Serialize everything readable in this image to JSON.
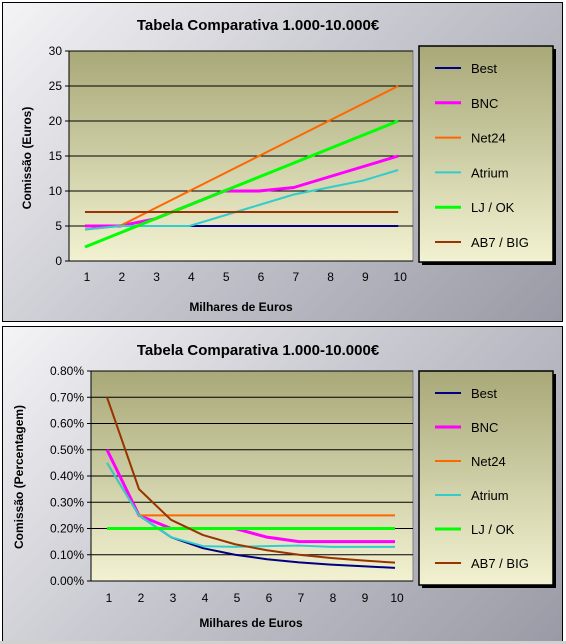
{
  "chart_data": [
    {
      "type": "line",
      "title": "Tabela Comparativa 1.000-10.000€",
      "xlabel": "Milhares de Euros",
      "ylabel": "Comissão (Euros)",
      "x": [
        1,
        2,
        3,
        4,
        5,
        6,
        7,
        8,
        9,
        10
      ],
      "ylim": [
        0,
        30
      ],
      "yticks": [
        "0",
        "5",
        "10",
        "15",
        "20",
        "25",
        "30"
      ],
      "ytick_values": [
        0,
        5,
        10,
        15,
        20,
        25,
        30
      ],
      "grid": true,
      "legend_position": "right",
      "series": [
        {
          "name": "Best",
          "color": "#000080",
          "values": [
            5,
            5,
            5,
            5,
            5,
            5,
            5,
            5,
            5,
            5
          ]
        },
        {
          "name": "BNC",
          "color": "#ff00ff",
          "values": [
            5,
            5,
            6,
            8,
            10,
            10,
            10.5,
            12,
            13.5,
            15
          ]
        },
        {
          "name": "Net24",
          "color": "#ff6600",
          "values": [
            4.5,
            5,
            7.5,
            10,
            12.5,
            15,
            17.5,
            20,
            22.5,
            25
          ]
        },
        {
          "name": "Atrium",
          "color": "#33cccc",
          "values": [
            4.5,
            5,
            5,
            5,
            6.5,
            8,
            9.5,
            10.5,
            11.5,
            13
          ]
        },
        {
          "name": "LJ / OK",
          "color": "#00ff00",
          "values": [
            2,
            4,
            6,
            8,
            10,
            12,
            14,
            16,
            18,
            20
          ]
        },
        {
          "name": "AB7 / BIG",
          "color": "#993300",
          "values": [
            7,
            7,
            7,
            7,
            7,
            7,
            7,
            7,
            7,
            7
          ]
        }
      ]
    },
    {
      "type": "line",
      "title": "Tabela Comparativa 1.000-10.000€",
      "xlabel": "Milhares de Euros",
      "ylabel": "Comissão (Percentagem)",
      "x": [
        1,
        2,
        3,
        4,
        5,
        6,
        7,
        8,
        9,
        10
      ],
      "ylim": [
        0,
        0.8
      ],
      "yticks": [
        "0.00%",
        "0.10%",
        "0.20%",
        "0.30%",
        "0.40%",
        "0.50%",
        "0.60%",
        "0.70%",
        "0.80%"
      ],
      "ytick_values": [
        0,
        0.1,
        0.2,
        0.3,
        0.4,
        0.5,
        0.6,
        0.7,
        0.8
      ],
      "grid": true,
      "legend_position": "right",
      "series": [
        {
          "name": "Best",
          "color": "#000080",
          "values": [
            0.5,
            0.25,
            0.167,
            0.125,
            0.1,
            0.083,
            0.071,
            0.0625,
            0.056,
            0.05
          ]
        },
        {
          "name": "BNC",
          "color": "#ff00ff",
          "values": [
            0.5,
            0.25,
            0.2,
            0.2,
            0.2,
            0.167,
            0.15,
            0.15,
            0.15,
            0.15
          ]
        },
        {
          "name": "Net24",
          "color": "#ff6600",
          "values": [
            0.45,
            0.25,
            0.25,
            0.25,
            0.25,
            0.25,
            0.25,
            0.25,
            0.25,
            0.25
          ]
        },
        {
          "name": "Atrium",
          "color": "#33cccc",
          "values": [
            0.45,
            0.25,
            0.167,
            0.133,
            0.13,
            0.133,
            0.135,
            0.13,
            0.13,
            0.13
          ]
        },
        {
          "name": "LJ / OK",
          "color": "#00ff00",
          "values": [
            0.2,
            0.2,
            0.2,
            0.2,
            0.2,
            0.2,
            0.2,
            0.2,
            0.2,
            0.2
          ]
        },
        {
          "name": "AB7 / BIG",
          "color": "#993300",
          "values": [
            0.7,
            0.35,
            0.233,
            0.175,
            0.14,
            0.117,
            0.1,
            0.0875,
            0.078,
            0.07
          ]
        }
      ]
    }
  ]
}
